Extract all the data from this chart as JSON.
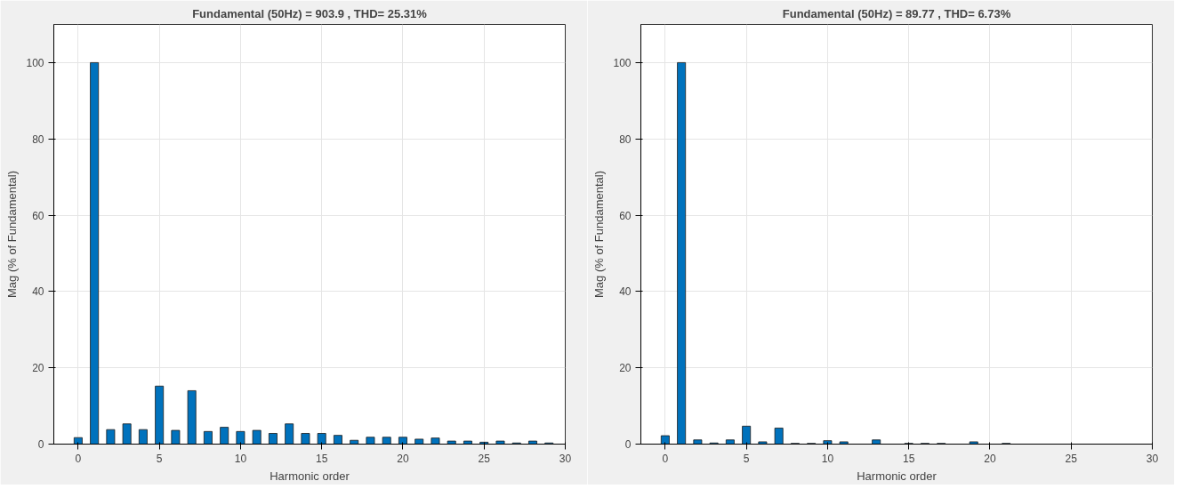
{
  "chart_data": [
    {
      "type": "bar",
      "title": "Fundamental (50Hz) = 903.9 , THD= 25.31%",
      "xlabel": "Harmonic order",
      "ylabel": "Mag (% of Fundamental)",
      "x": [
        0,
        1,
        2,
        3,
        4,
        5,
        6,
        7,
        8,
        9,
        10,
        11,
        12,
        13,
        14,
        15,
        16,
        17,
        18,
        19,
        20,
        21,
        22,
        23,
        24,
        25,
        26,
        27,
        28,
        29
      ],
      "series": [
        {
          "color": "#0072bd",
          "values": [
            1.7,
            100,
            3.8,
            5.3,
            3.8,
            15.2,
            3.6,
            14,
            3.3,
            4.4,
            3.3,
            3.6,
            2.8,
            5.3,
            2.8,
            2.8,
            2.3,
            1.0,
            1.8,
            1.8,
            1.8,
            1.3,
            1.6,
            0.8,
            0.8,
            0.5,
            0.8,
            0.3,
            0.8,
            0.3
          ]
        }
      ],
      "xlim": [
        -1.5,
        30
      ],
      "ylim": [
        0,
        110
      ],
      "xticks": [
        0,
        5,
        10,
        15,
        20,
        25,
        30
      ],
      "yticks": [
        0,
        20,
        40,
        60,
        80,
        100
      ],
      "grid": true
    },
    {
      "type": "bar",
      "title": "Fundamental (50Hz) = 89.77 , THD= 6.73%",
      "xlabel": "Harmonic order",
      "ylabel": "Mag (% of Fundamental)",
      "series": [
        {
          "color": "#0072bd",
          "values": [
            2.2,
            100,
            1.1,
            0.3,
            1.1,
            4.7,
            0.6,
            4.2,
            0.2,
            0.2,
            0.9,
            0.6,
            null,
            1.1,
            null,
            0.2,
            0.2,
            0.2,
            null,
            0.6,
            null,
            0.2
          ],
          "x": [
            0,
            1,
            2,
            3,
            4,
            5,
            6,
            7,
            8,
            9,
            10,
            11,
            12,
            13,
            14,
            15,
            16,
            17,
            18,
            19,
            20,
            21
          ]
        }
      ],
      "xlim": [
        -1.5,
        30
      ],
      "ylim": [
        0,
        110
      ],
      "xticks": [
        0,
        5,
        10,
        15,
        20,
        25,
        30
      ],
      "yticks": [
        0,
        20,
        40,
        60,
        80,
        100
      ],
      "grid": true
    }
  ]
}
